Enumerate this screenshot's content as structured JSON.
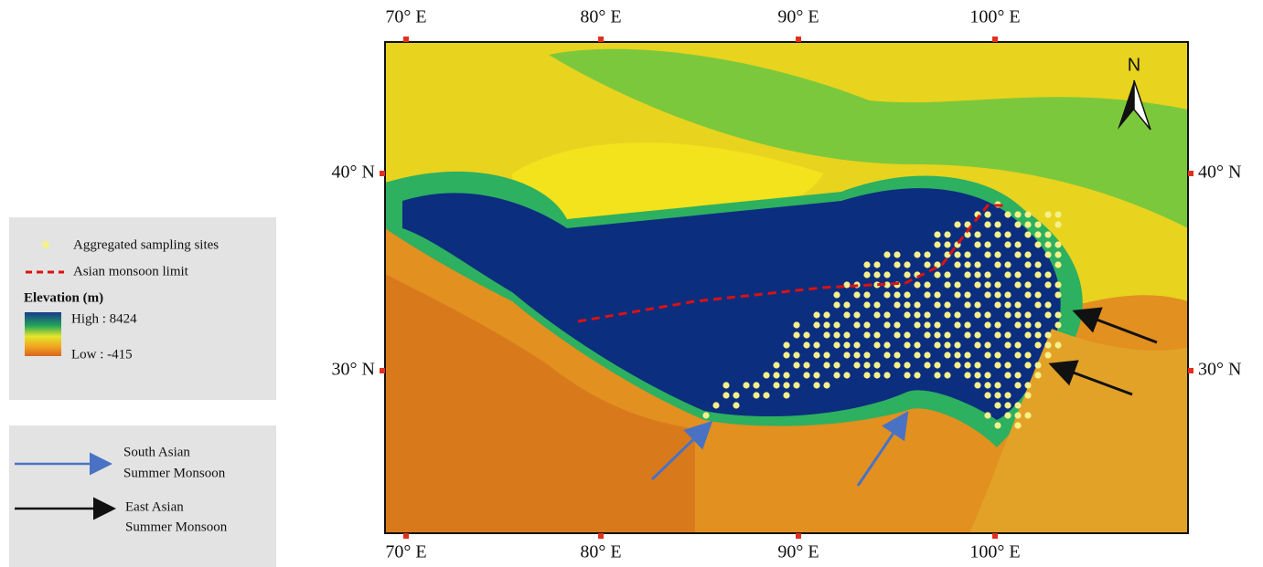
{
  "map": {
    "top_labels": [
      "70° E",
      "80° E",
      "90° E",
      "100° E"
    ],
    "bottom_labels": [
      "70° E",
      "80° E",
      "90° E",
      "100° E"
    ],
    "left_labels": [
      "40° N",
      "30° N"
    ],
    "right_labels": [
      "40° N",
      "30° N"
    ],
    "north": "N"
  },
  "legend": {
    "sites": "Aggregated sampling sites",
    "monsoon_limit": "Asian monsoon limit",
    "elevation_title": "Elevation (m)",
    "high": "High : 8424",
    "low": "Low : -415"
  },
  "arrows_legend": {
    "south_asian": [
      "South Asian",
      "Summer Monsoon"
    ],
    "east_asian": [
      "East Asian",
      "Summer Monsoon"
    ]
  }
}
